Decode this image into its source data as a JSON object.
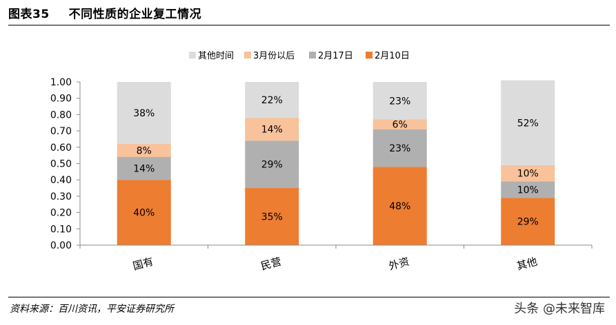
{
  "figure": {
    "number": "图表35",
    "title": "不同性质的企业复工情况",
    "source": "资料来源：百川资讯，平安证券研究所",
    "watermark": "头条 @未来智库"
  },
  "chart_data": {
    "type": "bar",
    "stacked": true,
    "categories": [
      "国有",
      "民营",
      "外资",
      "其他"
    ],
    "series": [
      {
        "name": "2月10日",
        "color": "#ED7D31",
        "values": [
          0.4,
          0.35,
          0.48,
          0.29
        ],
        "labels": [
          "40%",
          "35%",
          "48%",
          "29%"
        ]
      },
      {
        "name": "2月17日",
        "color": "#B0B0B0",
        "values": [
          0.14,
          0.29,
          0.23,
          0.1
        ],
        "labels": [
          "14%",
          "29%",
          "23%",
          "10%"
        ]
      },
      {
        "name": "3月份以后",
        "color": "#F8C29B",
        "values": [
          0.08,
          0.14,
          0.06,
          0.1
        ],
        "labels": [
          "8%",
          "14%",
          "6%",
          "10%"
        ]
      },
      {
        "name": "其他时间",
        "color": "#DCDCDC",
        "values": [
          0.38,
          0.22,
          0.23,
          0.52
        ],
        "labels": [
          "38%",
          "22%",
          "23%",
          "52%"
        ]
      }
    ],
    "legend_order": [
      "其他时间",
      "3月份以后",
      "2月17日",
      "2月10日"
    ],
    "legend_position": "top",
    "ylim": [
      0,
      1.0
    ],
    "yticks": [
      "0.00",
      "0.10",
      "0.20",
      "0.30",
      "0.40",
      "0.50",
      "0.60",
      "0.70",
      "0.80",
      "0.90",
      "1.00"
    ],
    "ytick_values": [
      0,
      0.1,
      0.2,
      0.3,
      0.4,
      0.5,
      0.6,
      0.7,
      0.8,
      0.9,
      1.0
    ],
    "xlabel": "",
    "ylabel": "",
    "grid": false
  }
}
